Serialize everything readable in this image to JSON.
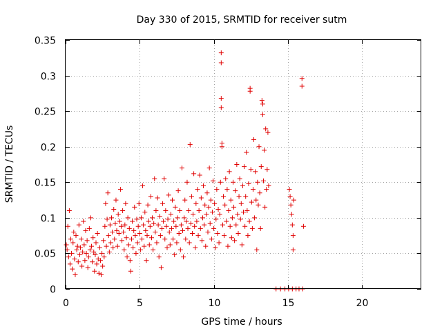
{
  "chart_data": {
    "type": "scatter",
    "title": "Day 330 of 2015, SRMTID for receiver sutm",
    "xlabel": "GPS time / hours",
    "ylabel": "SRMTID / TECUs",
    "xlim": [
      0,
      24
    ],
    "ylim": [
      0,
      0.35
    ],
    "xticks": [
      0,
      5,
      10,
      15,
      20
    ],
    "xtick_labels": [
      "0",
      "5",
      "10",
      "15",
      "20"
    ],
    "yticks": [
      0,
      0.05,
      0.1,
      0.15,
      0.2,
      0.25,
      0.3,
      0.35
    ],
    "ytick_labels": [
      "0",
      "0.05",
      "0.1",
      "0.15",
      "0.2",
      "0.25",
      "0.3",
      "0.35"
    ],
    "grid": true,
    "marker": "+",
    "color": "#e00000",
    "series": [
      {
        "name": "SRMTID",
        "points": [
          [
            0.05,
            0.062
          ],
          [
            0.1,
            0.055
          ],
          [
            0.15,
            0.088
          ],
          [
            0.2,
            0.045
          ],
          [
            0.25,
            0.11
          ],
          [
            0.3,
            0.035
          ],
          [
            0.35,
            0.07
          ],
          [
            0.4,
            0.05
          ],
          [
            0.45,
            0.028
          ],
          [
            0.5,
            0.065
          ],
          [
            0.55,
            0.08
          ],
          [
            0.6,
            0.042
          ],
          [
            0.65,
            0.02
          ],
          [
            0.7,
            0.075
          ],
          [
            0.75,
            0.055
          ],
          [
            0.8,
            0.06
          ],
          [
            0.85,
            0.038
          ],
          [
            0.9,
            0.09
          ],
          [
            0.95,
            0.048
          ],
          [
            1.0,
            0.058
          ],
          [
            1.05,
            0.07
          ],
          [
            1.1,
            0.032
          ],
          [
            1.15,
            0.052
          ],
          [
            1.2,
            0.095
          ],
          [
            1.25,
            0.062
          ],
          [
            1.3,
            0.04
          ],
          [
            1.35,
            0.082
          ],
          [
            1.4,
            0.05
          ],
          [
            1.45,
            0.068
          ],
          [
            1.5,
            0.03
          ],
          [
            1.55,
            0.045
          ],
          [
            1.6,
            0.085
          ],
          [
            1.65,
            0.055
          ],
          [
            1.7,
            0.1
          ],
          [
            1.75,
            0.06
          ],
          [
            1.8,
            0.038
          ],
          [
            1.85,
            0.072
          ],
          [
            1.9,
            0.052
          ],
          [
            1.95,
            0.025
          ],
          [
            2.0,
            0.048
          ],
          [
            2.05,
            0.065
          ],
          [
            2.1,
            0.035
          ],
          [
            2.15,
            0.078
          ],
          [
            2.2,
            0.042
          ],
          [
            2.25,
            0.022
          ],
          [
            2.3,
            0.058
          ],
          [
            2.35,
            0.04
          ],
          [
            2.4,
            0.02
          ],
          [
            2.45,
            0.05
          ],
          [
            2.5,
            0.032
          ],
          [
            2.55,
            0.068
          ],
          [
            2.6,
            0.045
          ],
          [
            2.65,
            0.088
          ],
          [
            2.7,
            0.12
          ],
          [
            2.75,
            0.06
          ],
          [
            2.8,
            0.098
          ],
          [
            2.85,
            0.135
          ],
          [
            2.9,
            0.075
          ],
          [
            2.95,
            0.052
          ],
          [
            3.0,
            0.09
          ],
          [
            3.05,
            0.065
          ],
          [
            3.1,
            0.1
          ],
          [
            3.15,
            0.08
          ],
          [
            3.2,
            0.058
          ],
          [
            3.25,
            0.112
          ],
          [
            3.3,
            0.07
          ],
          [
            3.35,
            0.092
          ],
          [
            3.4,
            0.125
          ],
          [
            3.45,
            0.082
          ],
          [
            3.5,
            0.06
          ],
          [
            3.55,
            0.105
          ],
          [
            3.6,
            0.078
          ],
          [
            3.65,
            0.095
          ],
          [
            3.7,
            0.14
          ],
          [
            3.75,
            0.088
          ],
          [
            3.8,
            0.068
          ],
          [
            3.85,
            0.11
          ],
          [
            3.9,
            0.08
          ],
          [
            3.95,
            0.055
          ],
          [
            4.0,
            0.09
          ],
          [
            4.05,
            0.12
          ],
          [
            4.1,
            0.072
          ],
          [
            4.15,
            0.045
          ],
          [
            4.2,
            0.1
          ],
          [
            4.25,
            0.062
          ],
          [
            4.3,
            0.085
          ],
          [
            4.35,
            0.04
          ],
          [
            4.4,
            0.025
          ],
          [
            4.45,
            0.07
          ],
          [
            4.5,
            0.095
          ],
          [
            4.55,
            0.058
          ],
          [
            4.6,
            0.082
          ],
          [
            4.65,
            0.115
          ],
          [
            4.7,
            0.075
          ],
          [
            4.75,
            0.05
          ],
          [
            4.8,
            0.098
          ],
          [
            4.85,
            0.065
          ],
          [
            4.9,
            0.088
          ],
          [
            4.95,
            0.12
          ],
          [
            5.0,
            0.078
          ],
          [
            5.05,
            0.055
          ],
          [
            5.1,
            0.1
          ],
          [
            5.15,
            0.07
          ],
          [
            5.2,
            0.145
          ],
          [
            5.25,
            0.09
          ],
          [
            5.3,
            0.06
          ],
          [
            5.35,
            0.108
          ],
          [
            5.4,
            0.082
          ],
          [
            5.45,
            0.04
          ],
          [
            5.5,
            0.075
          ],
          [
            5.55,
            0.118
          ],
          [
            5.6,
            0.095
          ],
          [
            5.65,
            0.062
          ],
          [
            5.7,
            0.088
          ],
          [
            5.75,
            0.13
          ],
          [
            5.8,
            0.072
          ],
          [
            5.85,
            0.1
          ],
          [
            5.9,
            0.055
          ],
          [
            5.95,
            0.092
          ],
          [
            6.0,
            0.155
          ],
          [
            6.05,
            0.08
          ],
          [
            6.1,
            0.11
          ],
          [
            6.15,
            0.065
          ],
          [
            6.2,
            0.128
          ],
          [
            6.25,
            0.09
          ],
          [
            6.3,
            0.045
          ],
          [
            6.35,
            0.102
          ],
          [
            6.4,
            0.075
          ],
          [
            6.45,
            0.03
          ],
          [
            6.5,
            0.085
          ],
          [
            6.55,
            0.12
          ],
          [
            6.6,
            0.095
          ],
          [
            6.65,
            0.155
          ],
          [
            6.7,
            0.07
          ],
          [
            6.75,
            0.11
          ],
          [
            6.8,
            0.088
          ],
          [
            6.85,
            0.058
          ],
          [
            6.9,
            0.098
          ],
          [
            6.95,
            0.132
          ],
          [
            7.0,
            0.08
          ],
          [
            7.05,
            0.062
          ],
          [
            7.1,
            0.105
          ],
          [
            7.15,
            0.085
          ],
          [
            7.2,
            0.125
          ],
          [
            7.25,
            0.07
          ],
          [
            7.3,
            0.095
          ],
          [
            7.35,
            0.048
          ],
          [
            7.4,
            0.115
          ],
          [
            7.45,
            0.088
          ],
          [
            7.5,
            0.065
          ],
          [
            7.55,
            0.1
          ],
          [
            7.6,
            0.138
          ],
          [
            7.65,
            0.078
          ],
          [
            7.7,
            0.11
          ],
          [
            7.75,
            0.055
          ],
          [
            7.8,
            0.09
          ],
          [
            7.85,
            0.17
          ],
          [
            7.9,
            0.082
          ],
          [
            7.95,
            0.045
          ],
          [
            8.0,
            0.1
          ],
          [
            8.05,
            0.125
          ],
          [
            8.1,
            0.07
          ],
          [
            8.15,
            0.095
          ],
          [
            8.2,
            0.15
          ],
          [
            8.25,
            0.085
          ],
          [
            8.3,
            0.11
          ],
          [
            8.35,
            0.065
          ],
          [
            8.4,
            0.203
          ],
          [
            8.45,
            0.092
          ],
          [
            8.5,
            0.13
          ],
          [
            8.55,
            0.078
          ],
          [
            8.6,
            0.105
          ],
          [
            8.65,
            0.162
          ],
          [
            8.7,
            0.088
          ],
          [
            8.75,
            0.058
          ],
          [
            8.8,
            0.12
          ],
          [
            8.85,
            0.095
          ],
          [
            8.9,
            0.14
          ],
          [
            8.95,
            0.075
          ],
          [
            9.0,
            0.11
          ],
          [
            9.05,
            0.16
          ],
          [
            9.1,
            0.085
          ],
          [
            9.15,
            0.128
          ],
          [
            9.2,
            0.068
          ],
          [
            9.25,
            0.1
          ],
          [
            9.3,
            0.145
          ],
          [
            9.35,
            0.09
          ],
          [
            9.4,
            0.118
          ],
          [
            9.45,
            0.06
          ],
          [
            9.5,
            0.105
          ],
          [
            9.55,
            0.135
          ],
          [
            9.6,
            0.08
          ],
          [
            9.65,
            0.115
          ],
          [
            9.7,
            0.17
          ],
          [
            9.75,
            0.092
          ],
          [
            9.8,
            0.125
          ],
          [
            9.85,
            0.07
          ],
          [
            9.9,
            0.108
          ],
          [
            9.95,
            0.152
          ],
          [
            10.0,
            0.085
          ],
          [
            10.05,
            0.12
          ],
          [
            10.1,
            0.058
          ],
          [
            10.15,
            0.098
          ],
          [
            10.2,
            0.14
          ],
          [
            10.25,
            0.078
          ],
          [
            10.3,
            0.112
          ],
          [
            10.35,
            0.065
          ],
          [
            10.4,
            0.105
          ],
          [
            10.45,
            0.15
          ],
          [
            10.5,
            0.332
          ],
          [
            10.5,
            0.318
          ],
          [
            10.5,
            0.268
          ],
          [
            10.5,
            0.255
          ],
          [
            10.55,
            0.205
          ],
          [
            10.55,
            0.2
          ],
          [
            10.6,
            0.09
          ],
          [
            10.65,
            0.13
          ],
          [
            10.7,
            0.075
          ],
          [
            10.75,
            0.118
          ],
          [
            10.8,
            0.155
          ],
          [
            10.85,
            0.095
          ],
          [
            10.9,
            0.14
          ],
          [
            10.95,
            0.06
          ],
          [
            11.0,
            0.11
          ],
          [
            11.05,
            0.165
          ],
          [
            11.1,
            0.088
          ],
          [
            11.15,
            0.125
          ],
          [
            11.2,
            0.072
          ],
          [
            11.25,
            0.1
          ],
          [
            11.3,
            0.15
          ],
          [
            11.35,
            0.115
          ],
          [
            11.4,
            0.068
          ],
          [
            11.45,
            0.138
          ],
          [
            11.5,
            0.09
          ],
          [
            11.55,
            0.175
          ],
          [
            11.6,
            0.105
          ],
          [
            11.65,
            0.078
          ],
          [
            11.7,
            0.13
          ],
          [
            11.75,
            0.155
          ],
          [
            11.8,
            0.098
          ],
          [
            11.85,
            0.12
          ],
          [
            11.9,
            0.062
          ],
          [
            11.95,
            0.145
          ],
          [
            12.0,
            0.108
          ],
          [
            12.05,
            0.172
          ],
          [
            12.1,
            0.088
          ],
          [
            12.15,
            0.13
          ],
          [
            12.2,
            0.192
          ],
          [
            12.25,
            0.11
          ],
          [
            12.3,
            0.075
          ],
          [
            12.35,
            0.148
          ],
          [
            12.4,
            0.095
          ],
          [
            12.45,
            0.282
          ],
          [
            12.45,
            0.278
          ],
          [
            12.5,
            0.168
          ],
          [
            12.55,
            0.122
          ],
          [
            12.6,
            0.085
          ],
          [
            12.65,
            0.14
          ],
          [
            12.7,
            0.21
          ],
          [
            12.75,
            0.1
          ],
          [
            12.8,
            0.165
          ],
          [
            12.85,
            0.125
          ],
          [
            12.9,
            0.055
          ],
          [
            12.95,
            0.15
          ],
          [
            13.0,
            0.118
          ],
          [
            13.05,
            0.2
          ],
          [
            13.1,
            0.135
          ],
          [
            13.15,
            0.085
          ],
          [
            13.2,
            0.172
          ],
          [
            13.25,
            0.265
          ],
          [
            13.3,
            0.26
          ],
          [
            13.3,
            0.245
          ],
          [
            13.35,
            0.152
          ],
          [
            13.4,
            0.195
          ],
          [
            13.45,
            0.115
          ],
          [
            13.5,
            0.225
          ],
          [
            13.55,
            0.14
          ],
          [
            13.6,
            0.168
          ],
          [
            13.65,
            0.22
          ],
          [
            13.7,
            0.145
          ],
          [
            15.1,
            0.14
          ],
          [
            15.15,
            0.13
          ],
          [
            15.2,
            0.118
          ],
          [
            15.25,
            0.105
          ],
          [
            15.3,
            0.09
          ],
          [
            15.35,
            0.075
          ],
          [
            15.35,
            0.055
          ],
          [
            15.4,
            0.125
          ],
          [
            15.95,
            0.296
          ],
          [
            15.95,
            0.285
          ],
          [
            16.05,
            0.088
          ],
          [
            14.2,
            0.0
          ],
          [
            14.5,
            0.0
          ],
          [
            14.8,
            0.0
          ],
          [
            15.05,
            0.0
          ],
          [
            15.3,
            0.0
          ],
          [
            15.55,
            0.0
          ],
          [
            15.75,
            0.0
          ],
          [
            16.0,
            0.0
          ]
        ]
      }
    ]
  }
}
